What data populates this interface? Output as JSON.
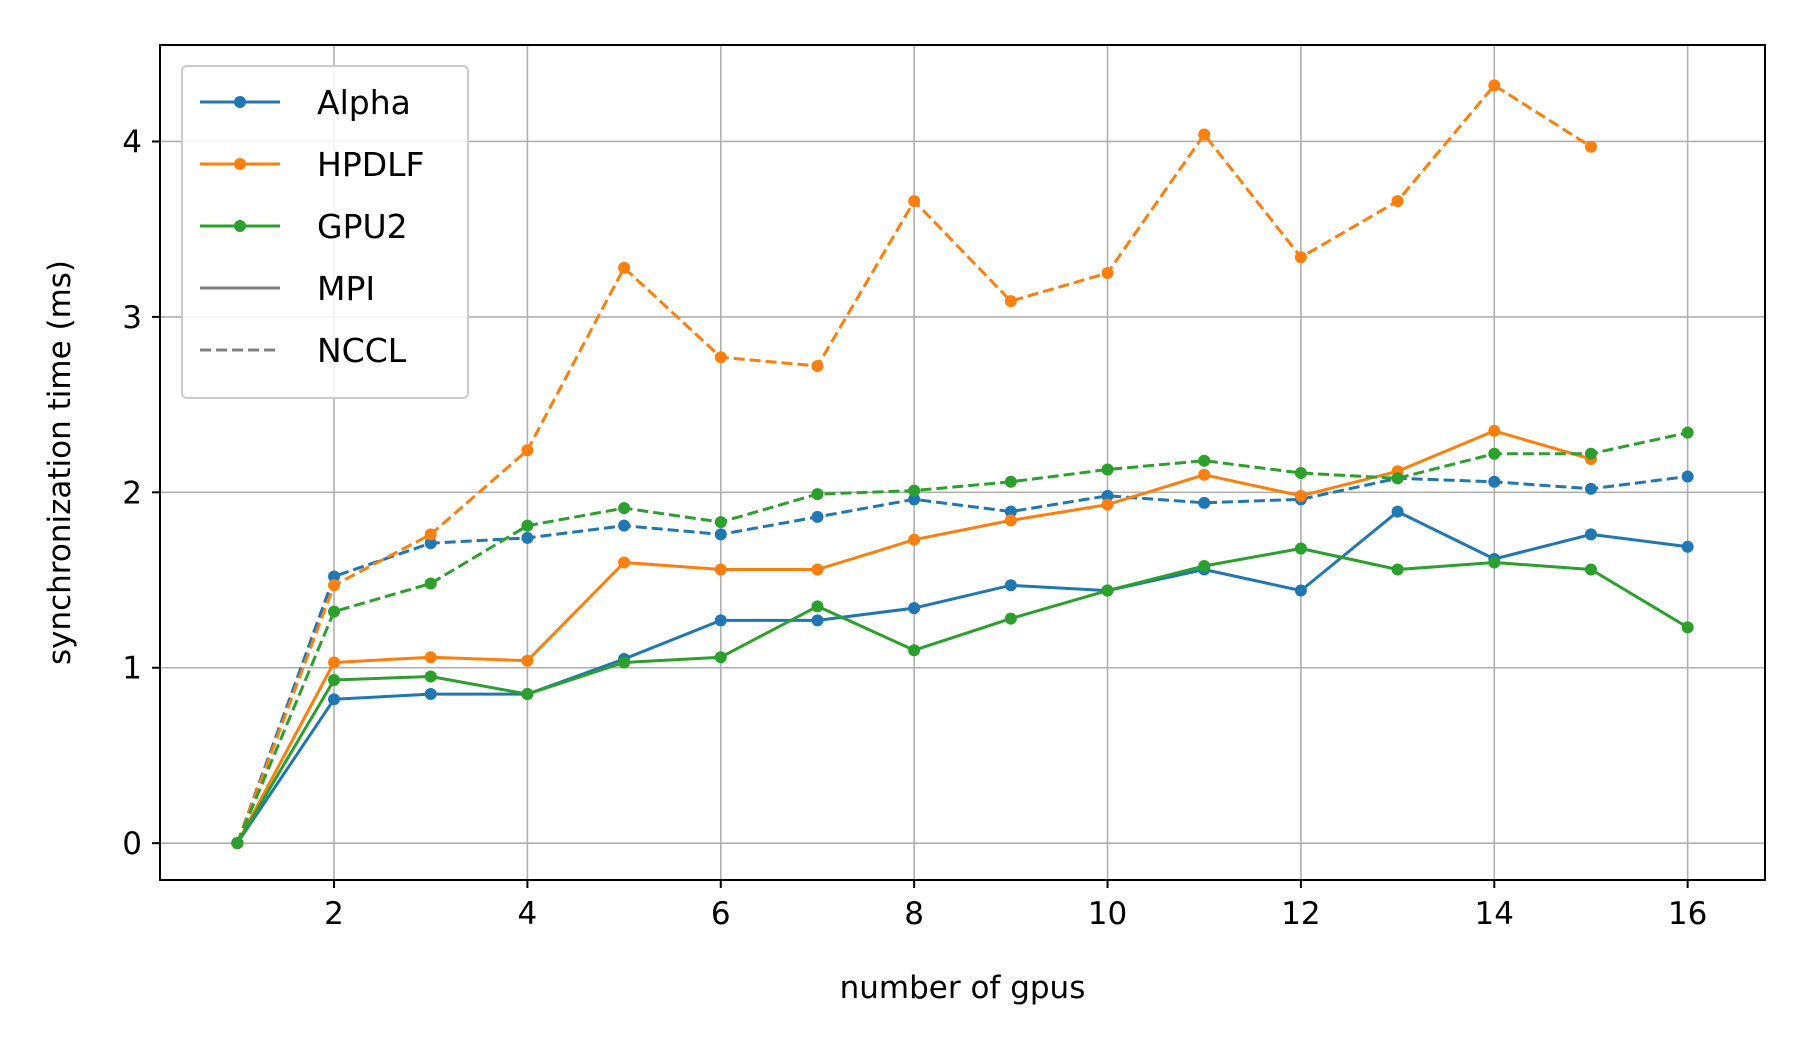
{
  "chart_data": {
    "type": "line",
    "title": "",
    "xlabel": "number of gpus",
    "ylabel": "synchronization time (ms)",
    "xlim": [
      0.2,
      16.8
    ],
    "ylim": [
      -0.21,
      4.55
    ],
    "xticks": [
      2,
      4,
      6,
      8,
      10,
      12,
      14,
      16
    ],
    "yticks": [
      0,
      1,
      2,
      3,
      4
    ],
    "grid": true,
    "legend_position": "top-left",
    "legend": [
      {
        "label": "Alpha",
        "color": "#1f77b4",
        "style": "solid",
        "marker": true
      },
      {
        "label": "HPDLF",
        "color": "#ff7f0e",
        "style": "solid",
        "marker": true
      },
      {
        "label": "GPU2",
        "color": "#2ca02c",
        "style": "solid",
        "marker": true
      },
      {
        "label": "MPI",
        "color": "#808080",
        "style": "solid",
        "marker": false
      },
      {
        "label": "NCCL",
        "color": "#808080",
        "style": "dashed",
        "marker": false
      }
    ],
    "series": [
      {
        "framework": "Alpha",
        "backend": "MPI",
        "color": "#1f77b4",
        "style": "solid",
        "x": [
          1,
          2,
          3,
          4,
          5,
          6,
          7,
          8,
          9,
          10,
          11,
          12,
          13,
          14,
          15,
          16
        ],
        "y": [
          0,
          0.82,
          0.85,
          0.85,
          1.05,
          1.27,
          1.27,
          1.34,
          1.47,
          1.44,
          1.56,
          1.44,
          1.89,
          1.62,
          1.76,
          1.69
        ]
      },
      {
        "framework": "Alpha",
        "backend": "NCCL",
        "color": "#1f77b4",
        "style": "dashed",
        "x": [
          1,
          2,
          3,
          4,
          5,
          6,
          7,
          8,
          9,
          10,
          11,
          12,
          13,
          14,
          15,
          16
        ],
        "y": [
          0,
          1.52,
          1.71,
          1.74,
          1.81,
          1.76,
          1.86,
          1.96,
          1.89,
          1.98,
          1.94,
          1.96,
          2.08,
          2.06,
          2.02,
          2.09
        ]
      },
      {
        "framework": "HPDLF",
        "backend": "MPI",
        "color": "#ff7f0e",
        "style": "solid",
        "x": [
          1,
          2,
          3,
          4,
          5,
          6,
          7,
          8,
          9,
          10,
          11,
          12,
          13,
          14,
          15
        ],
        "y": [
          0,
          1.03,
          1.06,
          1.04,
          1.6,
          1.56,
          1.56,
          1.73,
          1.84,
          1.93,
          2.1,
          1.98,
          2.12,
          2.35,
          2.19
        ]
      },
      {
        "framework": "HPDLF",
        "backend": "NCCL",
        "color": "#ff7f0e",
        "style": "dashed",
        "x": [
          1,
          2,
          3,
          4,
          5,
          6,
          7,
          8,
          9,
          10,
          11,
          12,
          13,
          14,
          15
        ],
        "y": [
          0,
          1.47,
          1.76,
          2.24,
          3.28,
          2.77,
          2.72,
          3.66,
          3.09,
          3.25,
          4.04,
          3.34,
          3.66,
          4.32,
          3.97
        ]
      },
      {
        "framework": "GPU2",
        "backend": "MPI",
        "color": "#2ca02c",
        "style": "solid",
        "x": [
          1,
          2,
          3,
          4,
          5,
          6,
          7,
          8,
          9,
          10,
          11,
          12,
          13,
          14,
          15,
          16
        ],
        "y": [
          0,
          0.93,
          0.95,
          0.85,
          1.03,
          1.06,
          1.35,
          1.1,
          1.28,
          1.44,
          1.58,
          1.68,
          1.56,
          1.6,
          1.56,
          1.23
        ]
      },
      {
        "framework": "GPU2",
        "backend": "NCCL",
        "color": "#2ca02c",
        "style": "dashed",
        "x": [
          1,
          2,
          3,
          4,
          5,
          6,
          7,
          8,
          9,
          10,
          11,
          12,
          13,
          14,
          15,
          16
        ],
        "y": [
          0,
          1.32,
          1.48,
          1.81,
          1.91,
          1.83,
          1.99,
          2.01,
          2.06,
          2.13,
          2.18,
          2.11,
          2.08,
          2.22,
          2.22,
          2.34
        ]
      }
    ]
  }
}
